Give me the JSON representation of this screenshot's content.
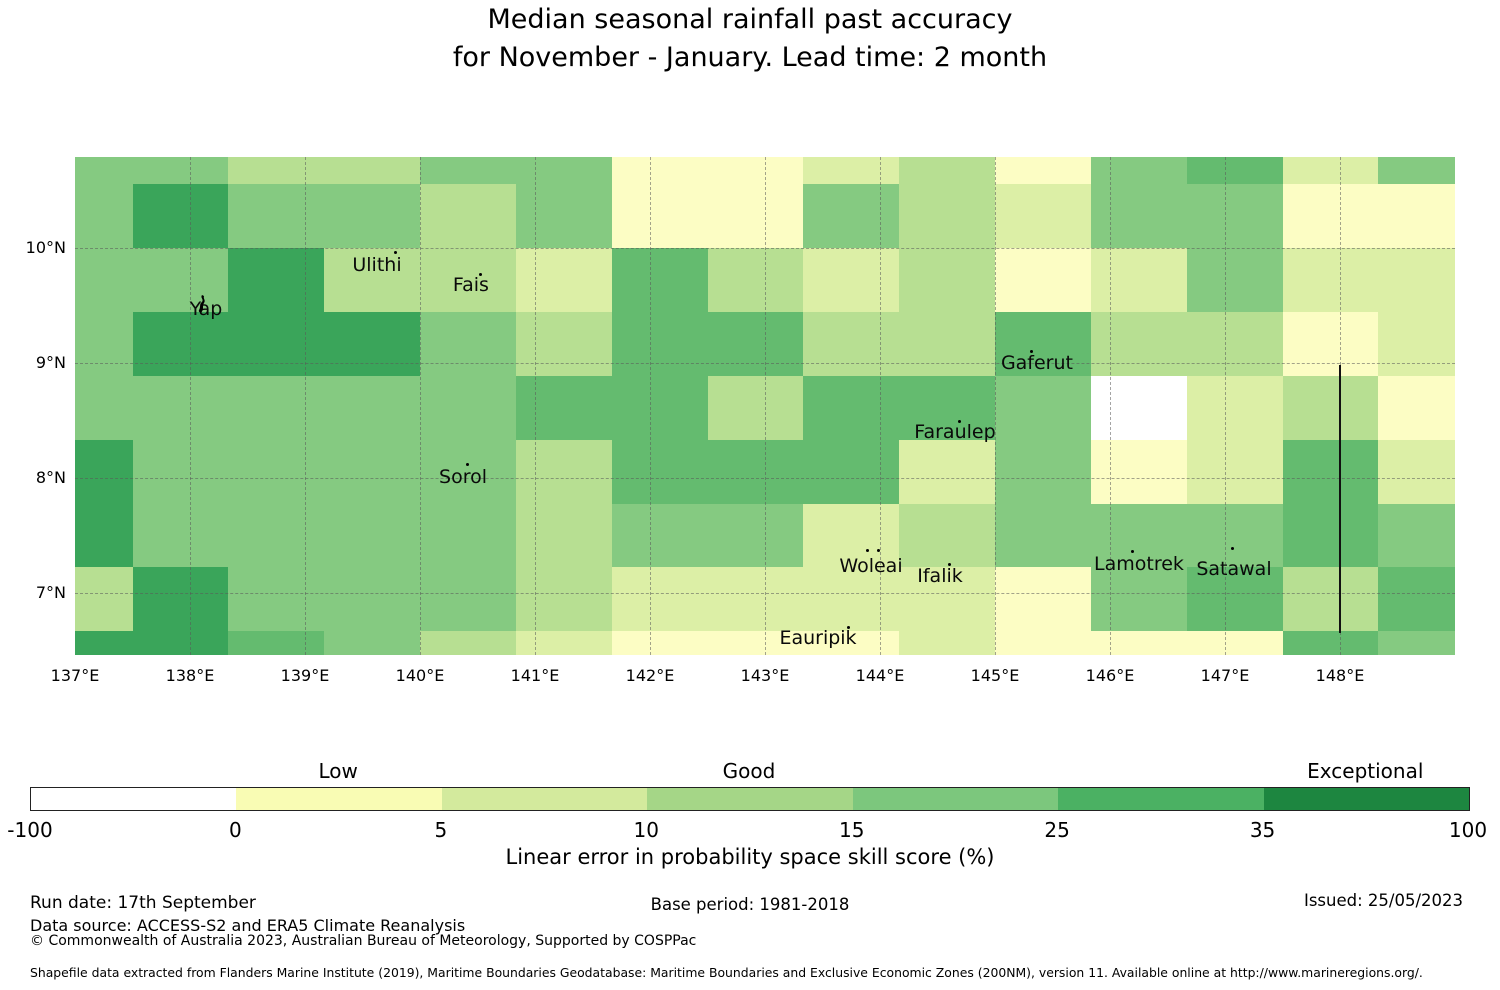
{
  "title": {
    "line1": "Median seasonal rainfall past accuracy",
    "line2": "for November - January. Lead time: 2 month"
  },
  "chart_data": {
    "type": "heatmap",
    "lon_range": [
      137.0,
      149.0
    ],
    "lat_range": [
      10.7913,
      6.4609
    ],
    "lon_ticks": [
      138,
      139,
      140,
      141,
      142,
      143,
      144,
      145,
      146,
      147,
      148
    ],
    "lat_ticks": [
      10,
      9,
      8,
      7
    ],
    "x_tick_labels": [
      "137°E",
      "138°E",
      "139°E",
      "140°E",
      "141°E",
      "142°E",
      "143°E",
      "144°E",
      "145°E",
      "146°E",
      "147°E",
      "148°E"
    ],
    "x_tick_lons": [
      137,
      138,
      139,
      140,
      141,
      142,
      143,
      144,
      145,
      146,
      147,
      148
    ],
    "y_tick_labels": [
      "10°N",
      "9°N",
      "8°N",
      "7°N"
    ],
    "y_tick_lats": [
      10,
      9,
      8,
      7
    ],
    "lon_edges": [
      137.0,
      137.5,
      138.3333,
      139.1667,
      140.0,
      140.8333,
      141.6667,
      142.5,
      143.3333,
      144.1667,
      145.0,
      145.8333,
      146.6667,
      147.5,
      148.3333,
      149.0
    ],
    "lat_edges": [
      10.7913,
      10.5556,
      10.0,
      9.4444,
      8.8889,
      8.3333,
      7.7778,
      7.2222,
      6.6667,
      6.4609
    ],
    "levels_legend": {
      "W": "below 0",
      "PY": "0-5",
      "YG": "5-10",
      "LG": "10-15",
      "MG": "15-25",
      "DG": "25-35",
      "DK": "35-100"
    },
    "map_colors": {
      "W": "#ffffff",
      "PY": "#fcfdc4",
      "YG": "#dcefa6",
      "LG": "#b7df92",
      "MG": "#85ca81",
      "DG": "#64bb6f",
      "DK": "#3aa55a"
    },
    "grid": [
      [
        "MG",
        "MG",
        "LG",
        "LG",
        "MG",
        "MG",
        "PY",
        "PY",
        "YG",
        "LG",
        "PY",
        "MG",
        "DG",
        "YG",
        "MG"
      ],
      [
        "MG",
        "DK",
        "MG",
        "MG",
        "LG",
        "MG",
        "PY",
        "PY",
        "MG",
        "LG",
        "YG",
        "MG",
        "MG",
        "PY",
        "PY"
      ],
      [
        "MG",
        "MG",
        "DK",
        "LG",
        "LG",
        "YG",
        "DG",
        "LG",
        "YG",
        "LG",
        "PY",
        "YG",
        "MG",
        "YG",
        "YG"
      ],
      [
        "MG",
        "DK",
        "DK",
        "DK",
        "MG",
        "LG",
        "DG",
        "DG",
        "LG",
        "LG",
        "DG",
        "LG",
        "LG",
        "PY",
        "YG"
      ],
      [
        "MG",
        "MG",
        "MG",
        "MG",
        "MG",
        "DG",
        "DG",
        "LG",
        "DG",
        "DG",
        "MG",
        "W",
        "YG",
        "LG",
        "PY"
      ],
      [
        "DK",
        "MG",
        "MG",
        "MG",
        "MG",
        "LG",
        "DG",
        "DG",
        "DG",
        "YG",
        "MG",
        "PY",
        "YG",
        "DG",
        "YG"
      ],
      [
        "DK",
        "MG",
        "MG",
        "MG",
        "MG",
        "LG",
        "MG",
        "MG",
        "YG",
        "LG",
        "MG",
        "MG",
        "MG",
        "DG",
        "MG"
      ],
      [
        "LG",
        "DK",
        "MG",
        "MG",
        "MG",
        "LG",
        "YG",
        "YG",
        "YG",
        "YG",
        "PY",
        "MG",
        "DG",
        "LG",
        "DG"
      ],
      [
        "DK",
        "DK",
        "DG",
        "MG",
        "LG",
        "YG",
        "PY",
        "PY",
        "PY",
        "YG",
        "PY",
        "PY",
        "PY",
        "DG",
        "MG"
      ]
    ],
    "places": [
      {
        "name": "Yap",
        "lon": 138.139,
        "lat": 9.47,
        "marker": "island",
        "dots": []
      },
      {
        "name": "Ulithi",
        "lon": 139.626,
        "lat": 9.852,
        "dots": [
          [
            17,
            -14
          ]
        ]
      },
      {
        "name": "Fais",
        "lon": 140.443,
        "lat": 9.678,
        "dots": [
          [
            8,
            -12
          ]
        ]
      },
      {
        "name": "Sorol",
        "lon": 140.374,
        "lat": 8.009,
        "dots": [
          [
            3,
            -14
          ]
        ]
      },
      {
        "name": "Gaferut",
        "lon": 145.365,
        "lat": 9.0,
        "dots": [
          [
            -7,
            -13
          ]
        ]
      },
      {
        "name": "Faraulep",
        "lon": 144.652,
        "lat": 8.4,
        "dots": [
          [
            3,
            -12
          ]
        ]
      },
      {
        "name": "Woleai",
        "lon": 143.922,
        "lat": 7.235,
        "dots": [
          [
            -5,
            -17
          ],
          [
            6,
            -17
          ]
        ]
      },
      {
        "name": "Ifalik",
        "lon": 144.522,
        "lat": 7.148,
        "dots": [
          [
            8,
            -13
          ]
        ]
      },
      {
        "name": "Eauripik",
        "lon": 143.461,
        "lat": 6.609,
        "dots": [
          [
            29,
            -12
          ]
        ]
      },
      {
        "name": "Lamotrek",
        "lon": 146.252,
        "lat": 7.252,
        "dots": [
          [
            -8,
            -14
          ]
        ]
      },
      {
        "name": "Satawal",
        "lon": 147.078,
        "lat": 7.209,
        "dots": [
          [
            -3,
            -22
          ]
        ]
      }
    ],
    "boundary_line": {
      "lon": 148.0,
      "lat_from": 8.986,
      "lat_to": 6.655
    },
    "colorbar": {
      "segments": [
        {
          "color": "#ffffff",
          "range": "-100 to 0"
        },
        {
          "color": "#f9fcb4",
          "range": "0 to 5"
        },
        {
          "color": "#d3ea9d",
          "range": "5 to 10"
        },
        {
          "color": "#a5d687",
          "range": "10 to 15"
        },
        {
          "color": "#7cc77d",
          "range": "15 to 25"
        },
        {
          "color": "#4bb163",
          "range": "25 to 35"
        },
        {
          "color": "#1d8640",
          "range": "35 to 100"
        }
      ],
      "ticks": [
        "-100",
        "0",
        "5",
        "10",
        "15",
        "25",
        "35",
        "100"
      ],
      "band_labels": [
        {
          "text": "Low",
          "segment": 1
        },
        {
          "text": "Good",
          "segment": 3
        },
        {
          "text": "Exceptional",
          "segment": 6
        }
      ],
      "title": "Linear error in probability space skill score (%)"
    }
  },
  "footer": {
    "run_date": "Run date: 17th September",
    "data_source": "Data source: ACCESS-S2 and ERA5 Climate Reanalysis",
    "copyright": "© Commonwealth of Australia 2023, Australian Bureau of Meteorology, Supported by COSPPac",
    "base_period": "Base period: 1981-2018",
    "issued": "Issued: 25/05/2023",
    "shapefile_note": "Shapefile data extracted from Flanders Marine Institute (2019), Maritime Boundaries Geodatabase: Maritime Boundaries and Exclusive Economic Zones (200NM), version 11. Available online at http://www.marineregions.org/."
  }
}
